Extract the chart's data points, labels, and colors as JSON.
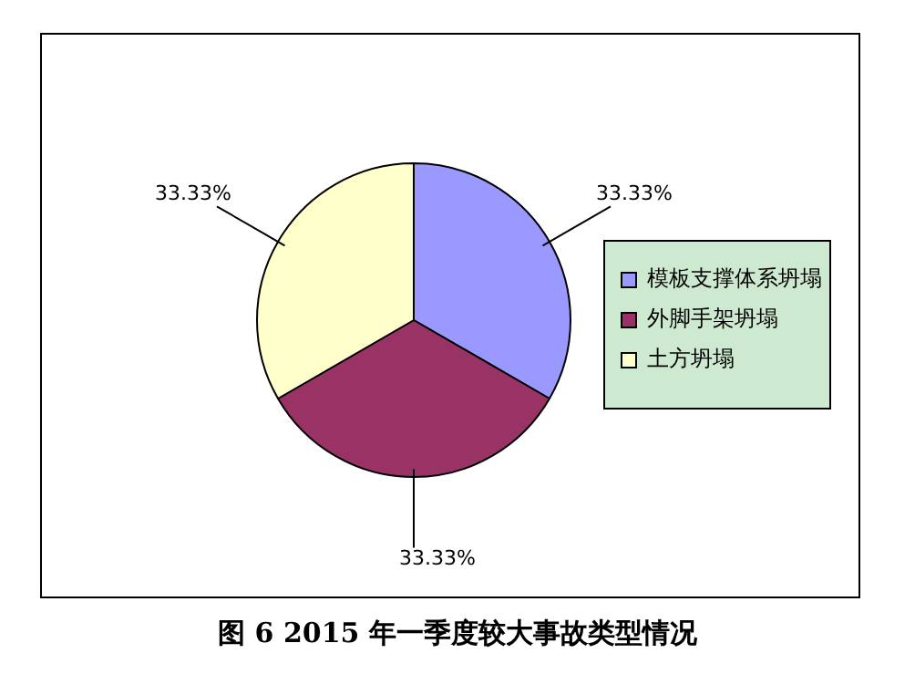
{
  "chart_data": {
    "type": "pie",
    "title": "图 6   2015 年一季度较大事故类型情况",
    "categories": [
      "模板支撑体系坍塌",
      "外脚手架坍塌",
      "土方坍塌"
    ],
    "values": [
      33.33,
      33.33,
      33.33
    ],
    "colors": [
      "#9999ff",
      "#993366",
      "#ffffcc"
    ],
    "value_labels": [
      "33.33%",
      "33.33%",
      "33.33%"
    ],
    "legend": "right"
  }
}
